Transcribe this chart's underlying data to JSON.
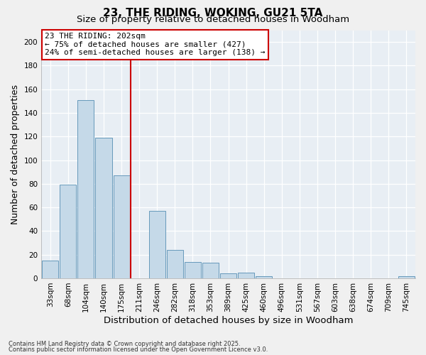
{
  "title": "23, THE RIDING, WOKING, GU21 5TA",
  "subtitle": "Size of property relative to detached houses in Woodham",
  "xlabel": "Distribution of detached houses by size in Woodham",
  "ylabel": "Number of detached properties",
  "footnote1": "Contains HM Land Registry data © Crown copyright and database right 2025.",
  "footnote2": "Contains public sector information licensed under the Open Government Licence v3.0.",
  "categories": [
    "33sqm",
    "68sqm",
    "104sqm",
    "140sqm",
    "175sqm",
    "211sqm",
    "246sqm",
    "282sqm",
    "318sqm",
    "353sqm",
    "389sqm",
    "425sqm",
    "460sqm",
    "496sqm",
    "531sqm",
    "567sqm",
    "603sqm",
    "638sqm",
    "674sqm",
    "709sqm",
    "745sqm"
  ],
  "values": [
    15,
    79,
    151,
    119,
    87,
    0,
    57,
    24,
    14,
    13,
    4,
    5,
    2,
    0,
    0,
    0,
    0,
    0,
    0,
    0,
    2
  ],
  "bar_color": "#c5d9e8",
  "bar_edge_color": "#6699bb",
  "property_label": "23 THE RIDING: 202sqm",
  "pct_smaller": 75,
  "n_smaller": 427,
  "pct_larger_semi": 24,
  "n_larger_semi": 138,
  "vline_color": "#cc0000",
  "annotation_box_color": "#cc0000",
  "vline_x_index": 5,
  "ylim": [
    0,
    210
  ],
  "yticks": [
    0,
    20,
    40,
    60,
    80,
    100,
    120,
    140,
    160,
    180,
    200
  ],
  "bg_color": "#e8eef4",
  "grid_color": "#ffffff",
  "title_fontsize": 11,
  "subtitle_fontsize": 9.5,
  "axis_label_fontsize": 9,
  "tick_fontsize": 7.5,
  "annotation_fontsize": 8
}
